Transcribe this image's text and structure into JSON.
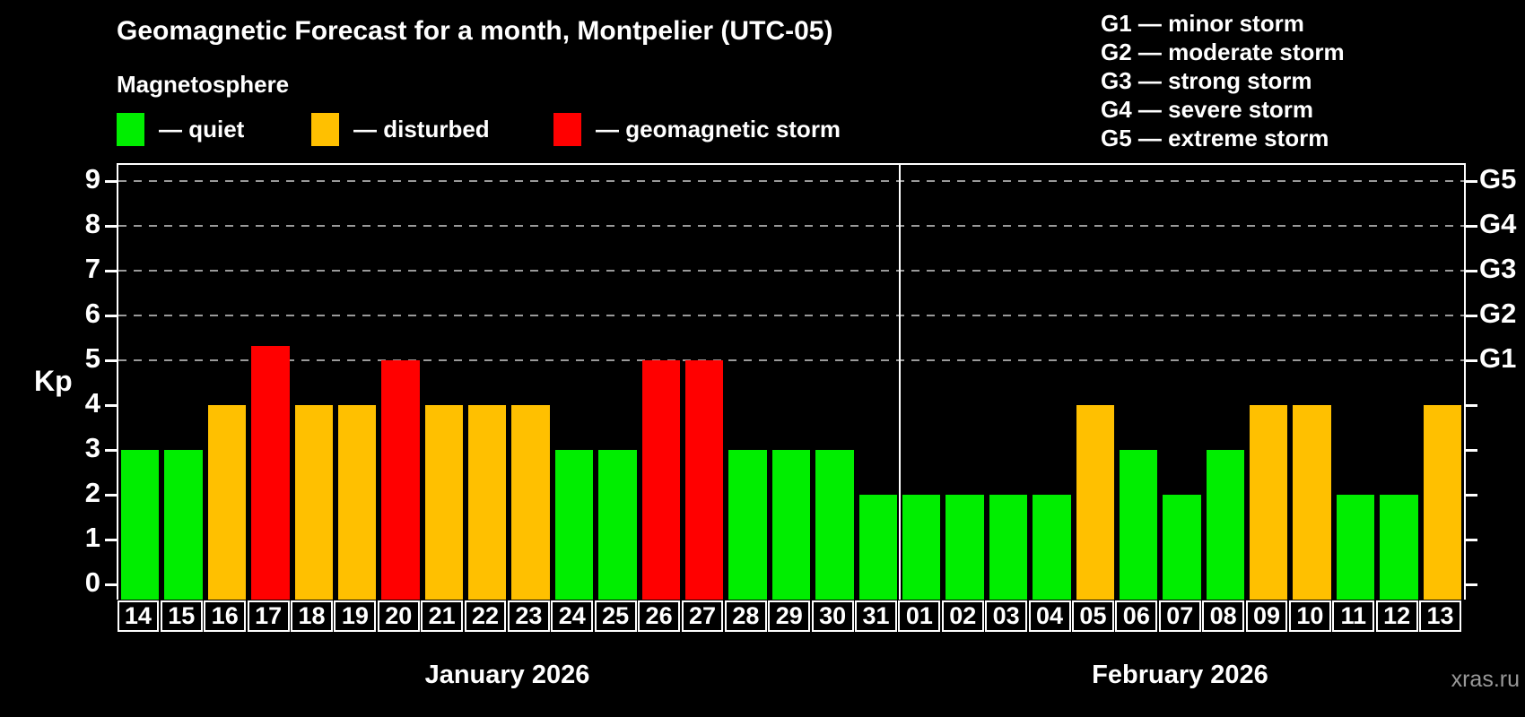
{
  "title": "Geomagnetic Forecast for a month, Montpelier (UTC-05)",
  "subtitle": "Magnetosphere",
  "legend": {
    "items": [
      {
        "key": "quiet",
        "label": "— quiet",
        "color": "#00ee00",
        "x": 0
      },
      {
        "key": "disturbed",
        "label": "— disturbed",
        "color": "#ffc000",
        "x": 217
      },
      {
        "key": "storm",
        "label": "— geomagnetic storm",
        "color": "#ff0000",
        "x": 487
      }
    ]
  },
  "g_legend": [
    "G1 — minor storm",
    "G2 — moderate storm",
    "G3 — strong storm",
    "G4 — severe storm",
    "G5 — extreme storm"
  ],
  "watermark": "xras.ru",
  "chart_data": {
    "type": "bar",
    "title": "Geomagnetic Forecast for a month, Montpelier (UTC-05)",
    "ylabel": "Kp",
    "ylim": [
      0,
      9
    ],
    "yticks": [
      0,
      1,
      2,
      3,
      4,
      5,
      6,
      7,
      8,
      9
    ],
    "grid_levels": [
      5,
      6,
      7,
      8,
      9
    ],
    "right_axis_labels": {
      "5": "G1",
      "6": "G2",
      "7": "G3",
      "8": "G4",
      "9": "G5"
    },
    "colors": {
      "quiet": "#00ee00",
      "disturbed": "#ffc000",
      "storm": "#ff0000"
    },
    "grid_color": "#9a9a9a",
    "months": [
      {
        "label": "January 2026",
        "days": [
          "14",
          "15",
          "16",
          "17",
          "18",
          "19",
          "20",
          "21",
          "22",
          "23",
          "24",
          "25",
          "26",
          "27",
          "28",
          "29",
          "30",
          "31"
        ],
        "values": [
          3,
          3,
          4,
          5.33,
          4,
          4,
          5,
          4,
          4,
          4,
          3,
          3,
          5,
          5,
          3,
          3,
          3,
          2
        ],
        "status": [
          "quiet",
          "quiet",
          "disturbed",
          "storm",
          "disturbed",
          "disturbed",
          "storm",
          "disturbed",
          "disturbed",
          "disturbed",
          "quiet",
          "quiet",
          "storm",
          "storm",
          "quiet",
          "quiet",
          "quiet",
          "quiet"
        ]
      },
      {
        "label": "February 2026",
        "days": [
          "01",
          "02",
          "03",
          "04",
          "05",
          "06",
          "07",
          "08",
          "09",
          "10",
          "11",
          "12",
          "13"
        ],
        "values": [
          2,
          2,
          2,
          2,
          4,
          3,
          2,
          3,
          4,
          4,
          2,
          2,
          4
        ],
        "status": [
          "quiet",
          "quiet",
          "quiet",
          "quiet",
          "disturbed",
          "quiet",
          "quiet",
          "quiet",
          "disturbed",
          "disturbed",
          "quiet",
          "quiet",
          "disturbed"
        ]
      }
    ]
  }
}
